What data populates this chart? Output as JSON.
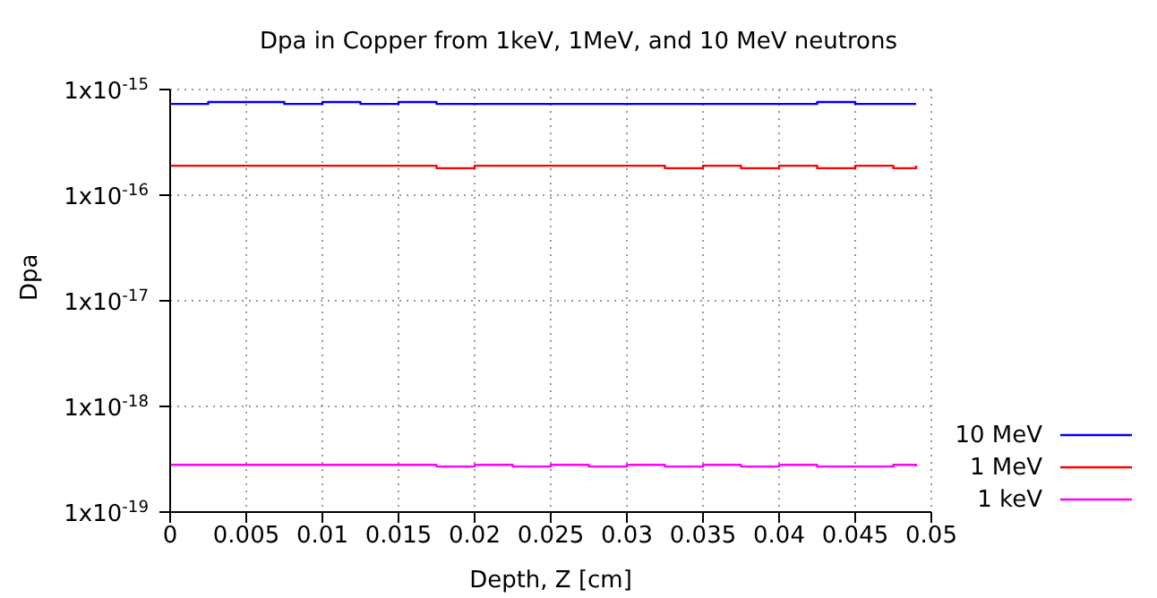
{
  "chart_data": {
    "type": "step",
    "title": "Dpa in Copper from 1keV, 1MeV, and 10 MeV neutrons",
    "xlabel": "Depth, Z [cm]",
    "ylabel": "Dpa",
    "x": [
      0,
      0.0025,
      0.005,
      0.0075,
      0.01,
      0.0125,
      0.015,
      0.0175,
      0.02,
      0.0225,
      0.025,
      0.0275,
      0.03,
      0.0325,
      0.035,
      0.0375,
      0.04,
      0.0425,
      0.045,
      0.0475,
      0.049
    ],
    "series": [
      {
        "name": "10 MeV",
        "color": "#0000ff",
        "values": [
          7.3e-16,
          7.6e-16,
          7.6e-16,
          7.3e-16,
          7.6e-16,
          7.3e-16,
          7.6e-16,
          7.3e-16,
          7.3e-16,
          7.3e-16,
          7.3e-16,
          7.3e-16,
          7.3e-16,
          7.3e-16,
          7.3e-16,
          7.3e-16,
          7.3e-16,
          7.6e-16,
          7.3e-16,
          7.3e-16,
          7.3e-16
        ]
      },
      {
        "name": "1 MeV",
        "color": "#ff0000",
        "values": [
          1.9e-16,
          1.9e-16,
          1.9e-16,
          1.9e-16,
          1.9e-16,
          1.9e-16,
          1.9e-16,
          1.8e-16,
          1.9e-16,
          1.9e-16,
          1.9e-16,
          1.9e-16,
          1.9e-16,
          1.8e-16,
          1.9e-16,
          1.8e-16,
          1.9e-16,
          1.8e-16,
          1.9e-16,
          1.8e-16,
          1.9e-16
        ]
      },
      {
        "name": "1 keV",
        "color": "#ff00ff",
        "values": [
          2.8e-19,
          2.8e-19,
          2.8e-19,
          2.8e-19,
          2.8e-19,
          2.8e-19,
          2.8e-19,
          2.7e-19,
          2.8e-19,
          2.7e-19,
          2.8e-19,
          2.7e-19,
          2.8e-19,
          2.7e-19,
          2.8e-19,
          2.7e-19,
          2.8e-19,
          2.7e-19,
          2.7e-19,
          2.8e-19,
          2.7e-19
        ]
      }
    ],
    "xlim": [
      0,
      0.05
    ],
    "xticks": [
      0,
      0.005,
      0.01,
      0.015,
      0.02,
      0.025,
      0.03,
      0.035,
      0.04,
      0.045,
      0.05
    ],
    "ylim": [
      1e-19,
      1e-15
    ],
    "yticks": [
      {
        "value": 1e-19,
        "label": "1x10$^{-19}$"
      },
      {
        "value": 1e-18,
        "label": "1x10$^{-18}$"
      },
      {
        "value": 1e-17,
        "label": "1x10$^{-17}$"
      },
      {
        "value": 1e-16,
        "label": "1x10$^{-16}$"
      },
      {
        "value": 1e-15,
        "label": "1x10$^{-15}$"
      }
    ],
    "log": "y",
    "grid": true,
    "legend": "bottom right",
    "marker": "none",
    "line_style": "solid"
  }
}
